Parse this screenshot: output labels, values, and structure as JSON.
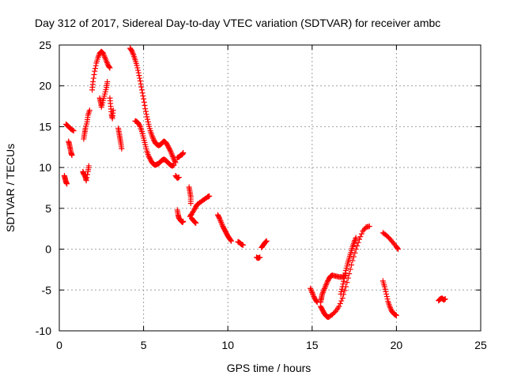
{
  "chart_data": {
    "type": "scatter",
    "title": "Day 312 of 2017, Sidereal Day-to-day VTEC variation (SDTVAR) for receiver ambc",
    "xlabel": "GPS time / hours",
    "ylabel": "SDTVAR / TECUs",
    "xlim": [
      0,
      25
    ],
    "ylim": [
      -10,
      25
    ],
    "xticks": [
      0,
      5,
      10,
      15,
      20,
      25
    ],
    "yticks": [
      -10,
      -5,
      0,
      5,
      10,
      15,
      20,
      25
    ],
    "grid": true,
    "marker_color": "#ff0000",
    "marker": "plus",
    "segments": [
      {
        "name": "s1",
        "points": [
          [
            0.3,
            9.0
          ],
          [
            0.35,
            8.6
          ],
          [
            0.4,
            8.2
          ],
          [
            0.45,
            8.0
          ]
        ]
      },
      {
        "name": "s2",
        "points": [
          [
            0.4,
            15.3
          ],
          [
            0.5,
            15.1
          ],
          [
            0.6,
            14.9
          ],
          [
            0.7,
            14.7
          ],
          [
            0.85,
            14.5
          ]
        ]
      },
      {
        "name": "s3",
        "points": [
          [
            0.55,
            13.2
          ],
          [
            0.6,
            12.8
          ],
          [
            0.65,
            12.3
          ],
          [
            0.7,
            11.8
          ],
          [
            0.75,
            11.5
          ]
        ]
      },
      {
        "name": "s4",
        "points": [
          [
            1.4,
            9.5
          ],
          [
            1.45,
            9.2
          ],
          [
            1.55,
            8.8
          ],
          [
            1.6,
            8.4
          ],
          [
            1.7,
            9.5
          ],
          [
            1.75,
            10.2
          ]
        ]
      },
      {
        "name": "s5",
        "points": [
          [
            1.45,
            13.5
          ],
          [
            1.5,
            14.2
          ],
          [
            1.55,
            14.8
          ],
          [
            1.65,
            15.6
          ],
          [
            1.7,
            16.4
          ],
          [
            1.8,
            17.0
          ]
        ]
      },
      {
        "name": "s6",
        "points": [
          [
            1.95,
            19.5
          ],
          [
            2.0,
            20.5
          ],
          [
            2.1,
            21.8
          ],
          [
            2.2,
            22.8
          ],
          [
            2.3,
            23.5
          ],
          [
            2.4,
            24.0
          ],
          [
            2.5,
            24.2
          ],
          [
            2.6,
            24.0
          ],
          [
            2.7,
            23.5
          ],
          [
            2.8,
            23.0
          ],
          [
            2.9,
            22.5
          ],
          [
            3.0,
            22.2
          ]
        ]
      },
      {
        "name": "s7",
        "points": [
          [
            2.4,
            18.5
          ],
          [
            2.45,
            18.0
          ],
          [
            2.5,
            17.4
          ],
          [
            2.6,
            18.2
          ],
          [
            2.7,
            19.0
          ],
          [
            2.8,
            19.8
          ],
          [
            2.85,
            20.5
          ]
        ]
      },
      {
        "name": "s8",
        "points": [
          [
            3.0,
            18.5
          ],
          [
            3.05,
            17.5
          ],
          [
            3.1,
            16.5
          ],
          [
            3.15,
            16.0
          ],
          [
            3.2,
            17.0
          ]
        ]
      },
      {
        "name": "s9",
        "points": [
          [
            3.5,
            14.8
          ],
          [
            3.55,
            14.2
          ],
          [
            3.6,
            13.6
          ],
          [
            3.65,
            13.0
          ],
          [
            3.7,
            12.3
          ]
        ]
      },
      {
        "name": "s10",
        "points": [
          [
            4.2,
            24.6
          ],
          [
            4.3,
            24.3
          ],
          [
            4.4,
            23.8
          ],
          [
            4.5,
            23.2
          ],
          [
            4.6,
            22.5
          ],
          [
            4.7,
            21.6
          ],
          [
            4.8,
            20.6
          ],
          [
            4.9,
            19.5
          ],
          [
            5.0,
            18.4
          ],
          [
            5.1,
            17.2
          ],
          [
            5.2,
            16.2
          ],
          [
            5.3,
            15.3
          ],
          [
            5.4,
            14.5
          ],
          [
            5.5,
            13.9
          ],
          [
            5.6,
            13.4
          ],
          [
            5.7,
            13.0
          ],
          [
            5.8,
            12.8
          ],
          [
            5.9,
            12.7
          ],
          [
            6.0,
            12.8
          ],
          [
            6.1,
            13.0
          ],
          [
            6.2,
            13.2
          ],
          [
            6.3,
            13.1
          ],
          [
            6.4,
            12.8
          ],
          [
            6.5,
            12.4
          ],
          [
            6.6,
            12.0
          ],
          [
            6.7,
            11.5
          ],
          [
            6.8,
            11.0
          ],
          [
            6.9,
            10.6
          ]
        ]
      },
      {
        "name": "s11",
        "points": [
          [
            4.5,
            15.7
          ],
          [
            4.6,
            15.6
          ],
          [
            4.7,
            15.4
          ],
          [
            4.8,
            15.0
          ],
          [
            4.9,
            14.4
          ],
          [
            5.0,
            13.6
          ],
          [
            5.1,
            12.8
          ],
          [
            5.2,
            12.0
          ],
          [
            5.3,
            11.4
          ],
          [
            5.4,
            11.0
          ],
          [
            5.5,
            10.6
          ],
          [
            5.6,
            10.4
          ],
          [
            5.7,
            10.3
          ],
          [
            5.8,
            10.4
          ],
          [
            5.9,
            10.5
          ],
          [
            6.0,
            10.7
          ],
          [
            6.1,
            10.9
          ],
          [
            6.2,
            11.0
          ],
          [
            6.3,
            10.9
          ],
          [
            6.4,
            10.7
          ],
          [
            6.5,
            10.5
          ],
          [
            6.6,
            10.3
          ],
          [
            6.7,
            10.2
          ],
          [
            6.8,
            10.3
          ]
        ]
      },
      {
        "name": "s12",
        "points": [
          [
            7.0,
            11.2
          ],
          [
            7.1,
            11.3
          ],
          [
            7.2,
            11.5
          ],
          [
            7.3,
            11.6
          ],
          [
            7.35,
            11.8
          ]
        ]
      },
      {
        "name": "s13",
        "points": [
          [
            6.9,
            9.0
          ],
          [
            7.0,
            8.7
          ],
          [
            7.1,
            8.8
          ]
        ]
      },
      {
        "name": "s14",
        "points": [
          [
            7.0,
            4.8
          ],
          [
            7.05,
            4.2
          ],
          [
            7.1,
            3.8
          ],
          [
            7.2,
            3.5
          ],
          [
            7.3,
            3.3
          ],
          [
            7.35,
            3.4
          ]
        ]
      },
      {
        "name": "s15",
        "points": [
          [
            7.7,
            7.6
          ],
          [
            7.75,
            7.0
          ],
          [
            7.8,
            6.4
          ],
          [
            7.8,
            5.6
          ]
        ]
      },
      {
        "name": "s16",
        "points": [
          [
            7.75,
            4.0
          ],
          [
            7.85,
            4.3
          ],
          [
            8.0,
            4.8
          ],
          [
            8.1,
            5.2
          ],
          [
            8.2,
            5.5
          ],
          [
            8.4,
            5.8
          ],
          [
            8.6,
            6.1
          ],
          [
            8.8,
            6.4
          ],
          [
            8.9,
            6.5
          ]
        ]
      },
      {
        "name": "s17",
        "points": [
          [
            7.85,
            3.8
          ],
          [
            7.95,
            3.5
          ],
          [
            8.05,
            3.3
          ],
          [
            8.1,
            3.2
          ]
        ]
      },
      {
        "name": "s18",
        "points": [
          [
            9.4,
            4.2
          ],
          [
            9.5,
            3.8
          ],
          [
            9.6,
            3.3
          ],
          [
            9.7,
            2.8
          ],
          [
            9.8,
            2.4
          ],
          [
            9.9,
            2.0
          ],
          [
            10.0,
            1.6
          ],
          [
            10.1,
            1.3
          ],
          [
            10.2,
            1.0
          ]
        ]
      },
      {
        "name": "s19",
        "points": [
          [
            10.6,
            0.9
          ],
          [
            10.7,
            0.8
          ],
          [
            10.8,
            0.6
          ],
          [
            10.9,
            0.5
          ]
        ]
      },
      {
        "name": "s20",
        "points": [
          [
            11.7,
            -1.0
          ],
          [
            11.8,
            -1.1
          ],
          [
            11.9,
            -1.0
          ]
        ]
      },
      {
        "name": "s21",
        "points": [
          [
            12.0,
            0.2
          ],
          [
            12.1,
            0.5
          ],
          [
            12.2,
            0.8
          ],
          [
            12.3,
            1.0
          ]
        ]
      },
      {
        "name": "s22",
        "points": [
          [
            14.9,
            -4.8
          ],
          [
            15.0,
            -5.3
          ],
          [
            15.1,
            -5.8
          ],
          [
            15.2,
            -6.2
          ],
          [
            15.3,
            -6.5
          ]
        ]
      },
      {
        "name": "s23",
        "points": [
          [
            15.5,
            -6.5
          ],
          [
            15.55,
            -6.0
          ],
          [
            15.6,
            -5.5
          ],
          [
            15.7,
            -5.0
          ],
          [
            15.8,
            -4.5
          ],
          [
            15.9,
            -4.0
          ],
          [
            16.0,
            -3.6
          ],
          [
            16.1,
            -3.3
          ],
          [
            16.2,
            -3.2
          ],
          [
            16.4,
            -3.3
          ],
          [
            16.6,
            -3.4
          ],
          [
            16.8,
            -3.4
          ],
          [
            17.0,
            -3.2
          ]
        ]
      },
      {
        "name": "s24",
        "points": [
          [
            15.5,
            -7.0
          ],
          [
            15.6,
            -7.4
          ],
          [
            15.7,
            -7.8
          ],
          [
            15.8,
            -8.1
          ],
          [
            15.9,
            -8.3
          ],
          [
            16.0,
            -8.3
          ],
          [
            16.2,
            -8.0
          ],
          [
            16.4,
            -7.6
          ],
          [
            16.6,
            -7.0
          ],
          [
            16.8,
            -6.0
          ],
          [
            17.0,
            -4.6
          ],
          [
            17.2,
            -3.0
          ],
          [
            17.4,
            -1.4
          ],
          [
            17.6,
            0.0
          ],
          [
            17.8,
            1.2
          ],
          [
            18.0,
            2.2
          ],
          [
            18.2,
            2.7
          ],
          [
            18.4,
            2.8
          ]
        ]
      },
      {
        "name": "s25",
        "points": [
          [
            16.7,
            -5.5
          ],
          [
            16.8,
            -4.6
          ],
          [
            16.9,
            -3.6
          ],
          [
            17.0,
            -2.6
          ],
          [
            17.1,
            -1.8
          ],
          [
            17.2,
            -1.1
          ],
          [
            17.3,
            -0.4
          ],
          [
            17.4,
            0.3
          ],
          [
            17.5,
            0.9
          ],
          [
            17.6,
            1.4
          ]
        ]
      },
      {
        "name": "s26",
        "points": [
          [
            19.2,
            2.0
          ],
          [
            19.4,
            1.7
          ],
          [
            19.6,
            1.3
          ],
          [
            19.8,
            0.8
          ],
          [
            20.0,
            0.3
          ],
          [
            20.1,
            0.0
          ]
        ]
      },
      {
        "name": "s27",
        "points": [
          [
            19.2,
            -3.9
          ],
          [
            19.3,
            -4.6
          ],
          [
            19.4,
            -5.5
          ],
          [
            19.5,
            -6.4
          ],
          [
            19.6,
            -7.0
          ],
          [
            19.7,
            -7.5
          ],
          [
            19.8,
            -7.8
          ],
          [
            19.9,
            -8.0
          ],
          [
            20.0,
            -8.1
          ]
        ]
      },
      {
        "name": "s28",
        "points": [
          [
            22.5,
            -6.3
          ],
          [
            22.6,
            -6.1
          ],
          [
            22.7,
            -6.0
          ],
          [
            22.8,
            -6.2
          ],
          [
            22.9,
            -6.1
          ]
        ]
      }
    ]
  }
}
